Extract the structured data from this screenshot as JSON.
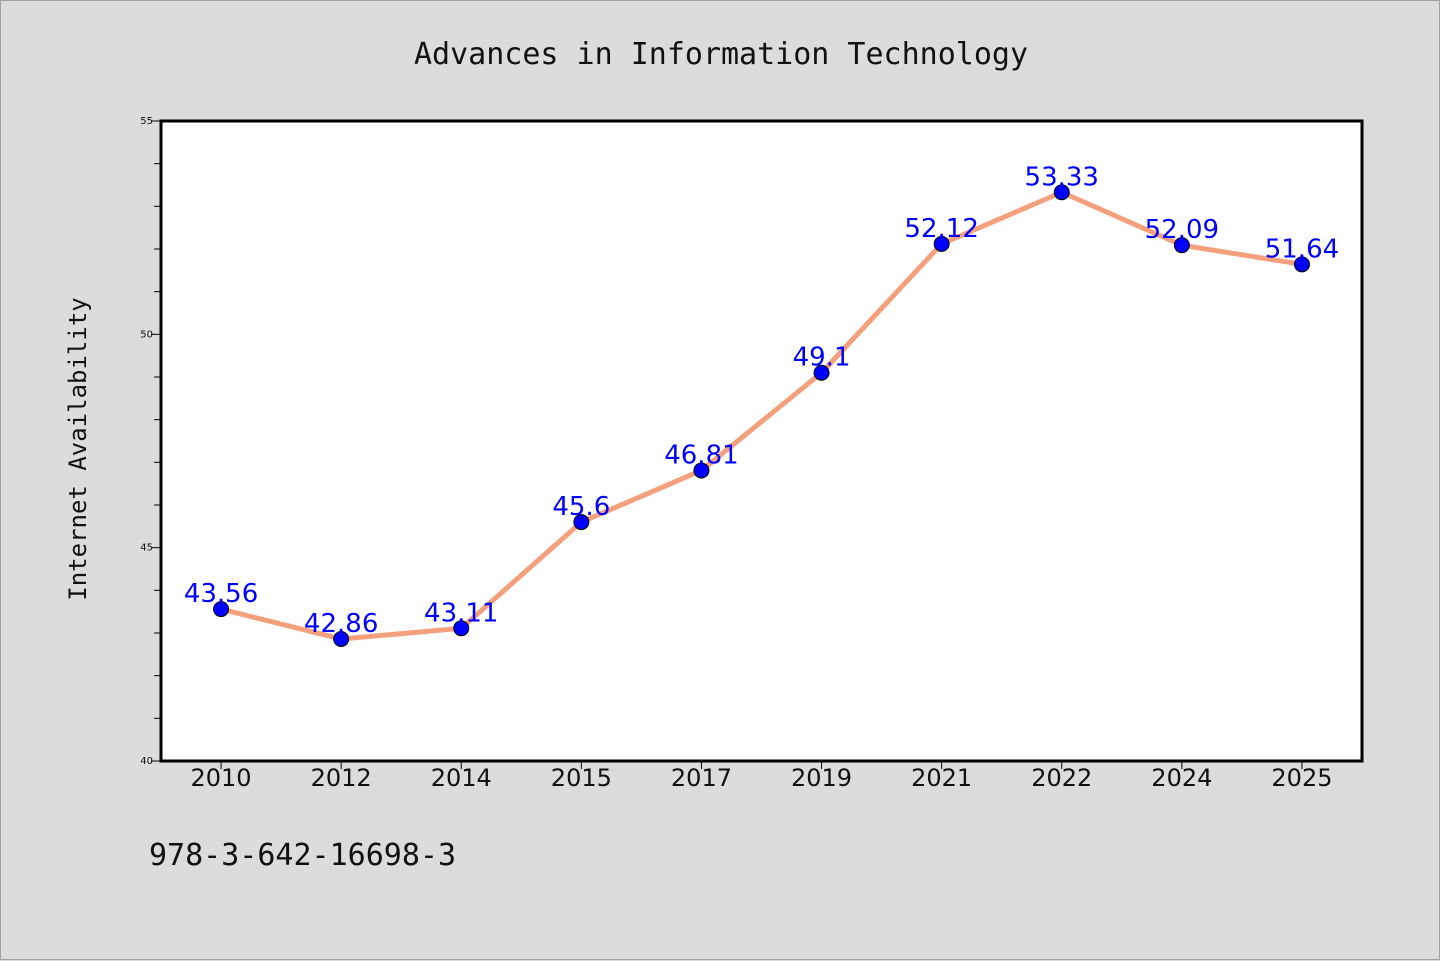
{
  "chart_data": {
    "type": "line",
    "title": "Advances in Information Technology",
    "xlabel": "",
    "ylabel": "Internet Availability",
    "categories": [
      "2010",
      "2012",
      "2014",
      "2015",
      "2017",
      "2019",
      "2021",
      "2022",
      "2024",
      "2025"
    ],
    "series": [
      {
        "values": [
          43.56,
          42.86,
          43.11,
          45.6,
          46.81,
          49.1,
          52.12,
          53.33,
          52.09,
          51.64
        ],
        "labels": [
          "43.56",
          "42.86",
          "43.11",
          "45.6",
          "46.81",
          "49.1",
          "52.12",
          "53.33",
          "52.09",
          "51.64"
        ],
        "line_color": "#f4a07c",
        "marker_color": "#0000ff",
        "label_color": "#0000ff"
      }
    ],
    "ylim": [
      40,
      55
    ],
    "yticks": [
      40,
      45,
      50,
      55
    ],
    "grid": false,
    "legend": "none"
  },
  "footnote": "978-3-642-16698-3",
  "colors": {
    "background": "#dcdcdc",
    "plot_background": "#ffffff",
    "axis": "#000000"
  }
}
